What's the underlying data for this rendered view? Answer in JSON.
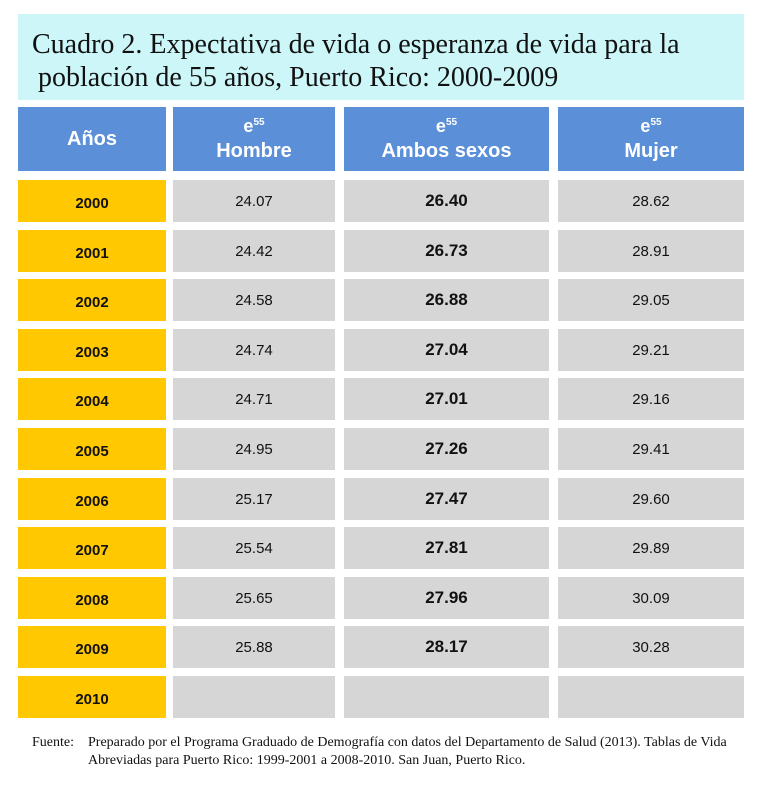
{
  "title": {
    "line1": "Cuadro 2. Expectativa de vida o esperanza de vida para la",
    "line2": "población de 55 años, Puerto Rico: 2000-2009"
  },
  "headers": {
    "years": "Años",
    "e_symbol": "e",
    "e_superscript": "55",
    "male": "Hombre",
    "both": "Ambos sexos",
    "female": "Mujer"
  },
  "rows": [
    {
      "year": "2000",
      "male": "24.07",
      "both": "26.40",
      "female": "28.62"
    },
    {
      "year": "2001",
      "male": "24.42",
      "both": "26.73",
      "female": "28.91"
    },
    {
      "year": "2002",
      "male": "24.58",
      "both": "26.88",
      "female": "29.05"
    },
    {
      "year": "2003",
      "male": "24.74",
      "both": "27.04",
      "female": "29.21"
    },
    {
      "year": "2004",
      "male": "24.71",
      "both": "27.01",
      "female": "29.16"
    },
    {
      "year": "2005",
      "male": "24.95",
      "both": "27.26",
      "female": "29.41"
    },
    {
      "year": "2006",
      "male": "25.17",
      "both": "27.47",
      "female": "29.60"
    },
    {
      "year": "2007",
      "male": "25.54",
      "both": "27.81",
      "female": "29.89"
    },
    {
      "year": "2008",
      "male": "25.65",
      "both": "27.96",
      "female": "30.09"
    },
    {
      "year": "2009",
      "male": "25.88",
      "both": "28.17",
      "female": "30.28"
    },
    {
      "year": "2010",
      "male": "",
      "both": "",
      "female": ""
    }
  ],
  "source": {
    "label": "Fuente:",
    "text": "Preparado por el Programa Graduado de Demografía con datos del Departamento de Salud (2013). Tablas de Vida Abreviadas para Puerto Rico: 1999-2001 a  2008-2010. San Juan, Puerto Rico."
  },
  "colors": {
    "title_bg": "#ccf6f8",
    "header_bg": "#5b8fd8",
    "year_bg": "#ffc800",
    "cell_bg": "#d6d6d6"
  }
}
